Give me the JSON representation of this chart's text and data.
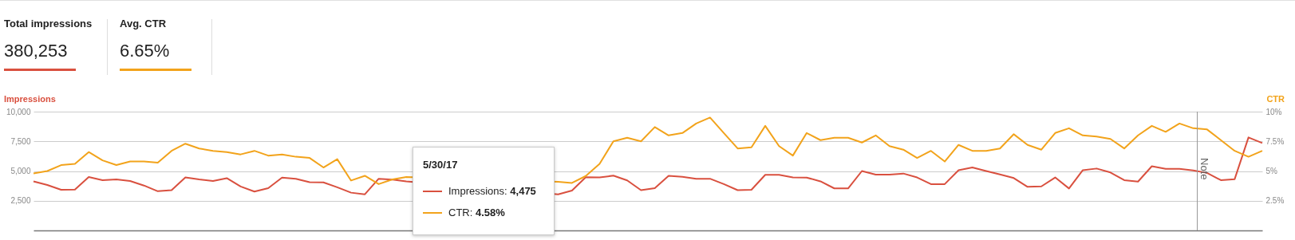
{
  "chart_data": {
    "type": "line",
    "ylabel": "Impressions",
    "y2label": "CTR",
    "annotations": [
      "Total impressions",
      "380,253",
      "Avg. CTR",
      "6.65%",
      "5/30/17",
      "Impressions: 4,475",
      "CTR: 4.58%",
      "Note"
    ],
    "categories": [
      null,
      null,
      null,
      null,
      null,
      null,
      null,
      null,
      null,
      null,
      null,
      null,
      null,
      null,
      null,
      null,
      null,
      null,
      null,
      null,
      null,
      null,
      null,
      null,
      null,
      null,
      null,
      null,
      null,
      null,
      null,
      null,
      null,
      null,
      null,
      null,
      null,
      null,
      null,
      null,
      null,
      null,
      null,
      null,
      null,
      null,
      null,
      null,
      null,
      null,
      null,
      null,
      null,
      null,
      null,
      null,
      null,
      null,
      null,
      null,
      null,
      null,
      null,
      null,
      null,
      null,
      null,
      null,
      null,
      null,
      null,
      null,
      null,
      null,
      null,
      null,
      null,
      null,
      null,
      null,
      null,
      null,
      null,
      null,
      null,
      null,
      null,
      null,
      null,
      null
    ],
    "series": [
      {
        "color": "#d9503f",
        "values": [
          4130,
          3830,
          3420,
          3440,
          4490,
          4230,
          4300,
          4160,
          3780,
          3300,
          3390,
          4470,
          4300,
          4160,
          4400,
          3700,
          3270,
          3560,
          4450,
          4350,
          4060,
          4040,
          3630,
          3180,
          3040,
          4350,
          4280,
          4130,
          null,
          null,
          null,
          null,
          null,
          null,
          null,
          null,
          null,
          null,
          3040,
          3350,
          4475,
          4470,
          4610,
          4210,
          3390,
          3560,
          4590,
          4520,
          4350,
          4350,
          3900,
          3390,
          3420,
          4680,
          4680,
          4470,
          4450,
          4130,
          3540,
          3540,
          5000,
          4700,
          4700,
          4790,
          4460,
          3900,
          3900,
          5070,
          5300,
          5000,
          4720,
          4410,
          3670,
          3710,
          4460,
          3530,
          5070,
          5210,
          4880,
          4230,
          4110,
          5400,
          5190,
          5190,
          5050,
          4840,
          4230,
          4320,
          7830,
          7360
        ]
      },
      {
        "color": "#f2a31b",
        "axis": "y2",
        "values": [
          4.8,
          5.0,
          5.5,
          5.6,
          6.6,
          5.9,
          5.5,
          5.8,
          5.8,
          5.7,
          6.7,
          7.3,
          6.9,
          6.7,
          6.6,
          6.4,
          6.7,
          6.3,
          6.4,
          6.2,
          6.1,
          5.3,
          6.0,
          4.2,
          4.6,
          3.9,
          4.3,
          4.5,
          null,
          null,
          null,
          null,
          null,
          null,
          null,
          null,
          null,
          null,
          4.1,
          4.0,
          4.58,
          5.6,
          7.5,
          7.8,
          7.5,
          8.7,
          8.0,
          8.2,
          9.0,
          9.5,
          8.2,
          6.9,
          7.0,
          8.8,
          7.1,
          6.3,
          8.2,
          7.6,
          7.8,
          7.8,
          7.4,
          8.0,
          7.1,
          6.8,
          6.1,
          6.7,
          5.8,
          7.2,
          6.7,
          6.7,
          6.9,
          8.1,
          7.2,
          6.8,
          8.2,
          8.6,
          8.0,
          7.9,
          7.7,
          6.9,
          8.0,
          8.8,
          8.3,
          9.0,
          8.6,
          8.5,
          7.6,
          6.7,
          6.2,
          6.7
        ]
      }
    ],
    "ylim": [
      0,
      10000
    ],
    "yticks": [
      {
        "value": 2500,
        "label": "2,500"
      },
      {
        "value": 5000,
        "label": "5,000"
      },
      {
        "value": 7500,
        "label": "7,500"
      },
      {
        "value": 10000,
        "label": "10,000"
      }
    ],
    "y2lim": [
      0,
      10
    ],
    "y2ticks": [
      {
        "value": 2.5,
        "label": "2.5%"
      },
      {
        "value": 5,
        "label": "5%"
      },
      {
        "value": 7.5,
        "label": "7.5%"
      },
      {
        "value": 10,
        "label": "10%"
      }
    ],
    "grid": "y",
    "tick_labels": "y"
  }
}
